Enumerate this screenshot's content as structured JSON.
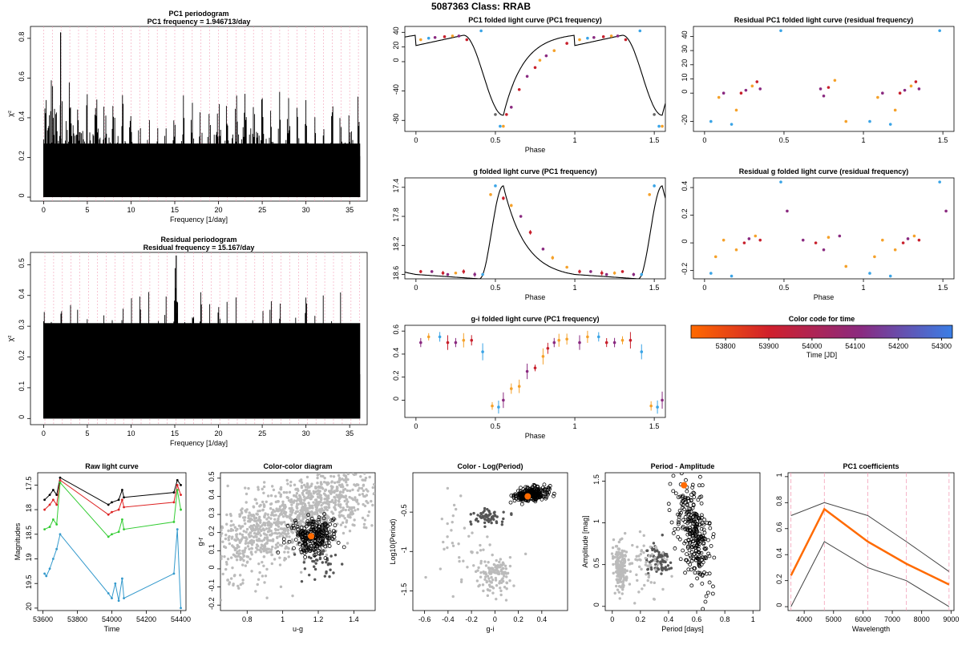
{
  "page": {
    "main_title": "5087363    Class: RRAB"
  },
  "chart_data": [
    {
      "id": "p1",
      "type": "line",
      "title": "PC1 periodogram",
      "subtitle": "PC1 frequency = 1.946713/day",
      "xlabel": "Frequency [1/day]",
      "ylabel": "χ²",
      "xlim": [
        -1.5,
        37
      ],
      "ylim": [
        -0.02,
        0.86
      ],
      "xticks": [
        0,
        5,
        10,
        15,
        20,
        25,
        30,
        35
      ],
      "yticks": [
        0.0,
        0.2,
        0.4,
        0.6,
        0.8
      ],
      "peak_frequency": 1.946713,
      "peak_value": 0.83
    },
    {
      "id": "p2",
      "type": "line",
      "title": "Residual periodogram",
      "subtitle": "Residual frequency = 15.167/day",
      "xlabel": "Frequency [1/day]",
      "ylabel": "χ²",
      "xlim": [
        -1.5,
        37
      ],
      "ylim": [
        -0.02,
        0.54
      ],
      "xticks": [
        0,
        5,
        10,
        15,
        20,
        25,
        30,
        35
      ],
      "yticks": [
        0.0,
        0.1,
        0.2,
        0.3,
        0.4,
        0.5
      ],
      "peak_frequency": 15.167,
      "peak_value": 0.53
    },
    {
      "id": "lc1",
      "type": "scatter",
      "title": "PC1 folded light curve (PC1 frequency)",
      "xlabel": "Phase",
      "ylabel": "",
      "xlim": [
        -0.07,
        1.57
      ],
      "ylim": [
        -95,
        48
      ],
      "xticks": [
        0.0,
        0.5,
        1.0,
        1.5
      ],
      "yticks": [
        40,
        20,
        0,
        -40,
        -80
      ],
      "points": [
        [
          0.03,
          30,
          "o"
        ],
        [
          0.08,
          32,
          "b"
        ],
        [
          0.12,
          33,
          "m"
        ],
        [
          0.18,
          34,
          "r"
        ],
        [
          0.23,
          35,
          "o"
        ],
        [
          0.27,
          35,
          "m"
        ],
        [
          0.32,
          30,
          "r"
        ],
        [
          0.41,
          42,
          "b"
        ],
        [
          0.5,
          -72,
          "g"
        ],
        [
          0.53,
          -88,
          "b"
        ],
        [
          0.55,
          -88,
          "o"
        ],
        [
          0.57,
          -72,
          "r"
        ],
        [
          0.6,
          -62,
          "m"
        ],
        [
          0.65,
          -38,
          "r"
        ],
        [
          0.7,
          -20,
          "m"
        ],
        [
          0.75,
          -8,
          "r"
        ],
        [
          0.78,
          2,
          "o"
        ],
        [
          0.82,
          8,
          "m"
        ],
        [
          0.87,
          15,
          "o"
        ],
        [
          0.95,
          25,
          "r"
        ],
        [
          1.03,
          30,
          "o"
        ],
        [
          1.08,
          32,
          "b"
        ],
        [
          1.12,
          33,
          "m"
        ],
        [
          1.18,
          34,
          "r"
        ],
        [
          1.23,
          35,
          "o"
        ],
        [
          1.27,
          35,
          "m"
        ],
        [
          1.32,
          30,
          "r"
        ],
        [
          1.41,
          42,
          "b"
        ],
        [
          1.5,
          -72,
          "g"
        ],
        [
          1.53,
          -88,
          "b"
        ],
        [
          1.55,
          -88,
          "o"
        ]
      ]
    },
    {
      "id": "lc2",
      "type": "scatter",
      "title": "g folded light curve (PC1 frequency)",
      "xlabel": "Phase",
      "ylabel": "",
      "xlim": [
        -0.07,
        1.57
      ],
      "ylim": [
        18.66,
        17.27
      ],
      "xticks": [
        0.0,
        0.5,
        1.0,
        1.5
      ],
      "yticks": [
        17.4,
        17.8,
        18.2,
        18.6
      ],
      "points": [
        [
          0.03,
          18.56,
          "r"
        ],
        [
          0.1,
          18.56,
          "m"
        ],
        [
          0.17,
          18.58,
          "r"
        ],
        [
          0.2,
          18.6,
          "m"
        ],
        [
          0.25,
          18.58,
          "o"
        ],
        [
          0.3,
          18.56,
          "r"
        ],
        [
          0.37,
          18.6,
          "m"
        ],
        [
          0.42,
          18.6,
          "b"
        ],
        [
          0.47,
          17.5,
          "o"
        ],
        [
          0.5,
          17.38,
          "b"
        ],
        [
          0.55,
          17.55,
          "r"
        ],
        [
          0.6,
          17.65,
          "o"
        ],
        [
          0.66,
          17.8,
          "m"
        ],
        [
          0.72,
          18.02,
          "r"
        ],
        [
          0.8,
          18.25,
          "m"
        ],
        [
          0.86,
          18.37,
          "o"
        ],
        [
          0.95,
          18.5,
          "o"
        ],
        [
          1.03,
          18.56,
          "r"
        ],
        [
          1.1,
          18.56,
          "m"
        ],
        [
          1.17,
          18.58,
          "r"
        ],
        [
          1.2,
          18.6,
          "m"
        ],
        [
          1.25,
          18.58,
          "o"
        ],
        [
          1.3,
          18.56,
          "r"
        ],
        [
          1.37,
          18.6,
          "m"
        ],
        [
          1.42,
          18.6,
          "b"
        ],
        [
          1.47,
          17.5,
          "o"
        ],
        [
          1.5,
          17.38,
          "b"
        ]
      ]
    },
    {
      "id": "lc3",
      "type": "scatter",
      "title": "g-i folded light curve (PC1 frequency)",
      "xlabel": "Phase",
      "ylabel": "",
      "xlim": [
        -0.07,
        1.57
      ],
      "ylim": [
        -0.15,
        0.65
      ],
      "xticks": [
        0.0,
        0.5,
        1.0,
        1.5
      ],
      "yticks": [
        0.0,
        0.2,
        0.4,
        0.6
      ],
      "points": [
        [
          0.03,
          0.5,
          "m"
        ],
        [
          0.08,
          0.55,
          "o"
        ],
        [
          0.15,
          0.55,
          "b"
        ],
        [
          0.2,
          0.5,
          "r"
        ],
        [
          0.25,
          0.5,
          "m"
        ],
        [
          0.3,
          0.52,
          "o"
        ],
        [
          0.35,
          0.52,
          "r"
        ],
        [
          0.42,
          0.42,
          "b"
        ],
        [
          0.48,
          -0.05,
          "o"
        ],
        [
          0.52,
          -0.06,
          "b"
        ],
        [
          0.55,
          0.0,
          "m"
        ],
        [
          0.6,
          0.1,
          "o"
        ],
        [
          0.65,
          0.12,
          "o"
        ],
        [
          0.7,
          0.25,
          "m"
        ],
        [
          0.75,
          0.28,
          "r"
        ],
        [
          0.8,
          0.38,
          "o"
        ],
        [
          0.83,
          0.45,
          "r"
        ],
        [
          0.87,
          0.5,
          "m"
        ],
        [
          0.9,
          0.52,
          "o"
        ],
        [
          0.95,
          0.53,
          "o"
        ],
        [
          1.03,
          0.5,
          "m"
        ],
        [
          1.08,
          0.55,
          "o"
        ],
        [
          1.15,
          0.55,
          "b"
        ],
        [
          1.2,
          0.5,
          "r"
        ],
        [
          1.25,
          0.5,
          "m"
        ],
        [
          1.3,
          0.52,
          "o"
        ],
        [
          1.35,
          0.52,
          "r"
        ],
        [
          1.42,
          0.42,
          "b"
        ],
        [
          1.48,
          -0.05,
          "o"
        ],
        [
          1.52,
          -0.06,
          "b"
        ],
        [
          1.55,
          0.0,
          "m"
        ]
      ]
    },
    {
      "id": "r1",
      "type": "scatter",
      "title": "Residual PC1 folded light curve (residual frequency)",
      "xlabel": "",
      "ylabel": "",
      "xlim": [
        -0.07,
        1.57
      ],
      "ylim": [
        -27,
        47
      ],
      "xticks": [
        0.0,
        0.5,
        1.0,
        1.5
      ],
      "yticks": [
        40,
        30,
        20,
        10,
        0,
        -20
      ],
      "points": [
        [
          0.04,
          -20,
          "b"
        ],
        [
          0.09,
          -3,
          "o"
        ],
        [
          0.12,
          0,
          "m"
        ],
        [
          0.17,
          -22,
          "b"
        ],
        [
          0.2,
          -12,
          "o"
        ],
        [
          0.23,
          0,
          "r"
        ],
        [
          0.26,
          2,
          "m"
        ],
        [
          0.3,
          5,
          "o"
        ],
        [
          0.33,
          8,
          "r"
        ],
        [
          0.35,
          3,
          "m"
        ],
        [
          0.48,
          44,
          "b"
        ],
        [
          0.73,
          3,
          "m"
        ],
        [
          0.75,
          -2,
          "m"
        ],
        [
          0.78,
          4,
          "r"
        ],
        [
          0.82,
          9,
          "o"
        ],
        [
          0.89,
          -20,
          "o"
        ],
        [
          1.04,
          -20,
          "b"
        ],
        [
          1.09,
          -3,
          "o"
        ],
        [
          1.12,
          0,
          "m"
        ],
        [
          1.17,
          -22,
          "b"
        ],
        [
          1.2,
          -12,
          "o"
        ],
        [
          1.23,
          0,
          "r"
        ],
        [
          1.26,
          2,
          "m"
        ],
        [
          1.3,
          5,
          "o"
        ],
        [
          1.33,
          8,
          "r"
        ],
        [
          1.35,
          3,
          "m"
        ],
        [
          1.48,
          44,
          "b"
        ]
      ]
    },
    {
      "id": "r2",
      "type": "scatter",
      "title": "Residual g folded light curve (residual frequency)",
      "xlabel": "Phase",
      "ylabel": "",
      "xlim": [
        -0.07,
        1.57
      ],
      "ylim": [
        -0.26,
        0.47
      ],
      "xticks": [
        0.0,
        0.5,
        1.0,
        1.5
      ],
      "yticks": [
        0.4,
        0.2,
        0.0,
        -0.2
      ],
      "points": [
        [
          0.04,
          -0.22,
          "b"
        ],
        [
          0.07,
          -0.1,
          "o"
        ],
        [
          0.12,
          0.02,
          "o"
        ],
        [
          0.17,
          -0.24,
          "b"
        ],
        [
          0.2,
          -0.05,
          "o"
        ],
        [
          0.25,
          0.0,
          "r"
        ],
        [
          0.28,
          0.03,
          "m"
        ],
        [
          0.32,
          0.05,
          "o"
        ],
        [
          0.35,
          0.02,
          "r"
        ],
        [
          0.48,
          0.44,
          "b"
        ],
        [
          0.52,
          0.23,
          "m"
        ],
        [
          0.62,
          0.02,
          "m"
        ],
        [
          0.7,
          0.0,
          "r"
        ],
        [
          0.75,
          -0.05,
          "m"
        ],
        [
          0.78,
          0.04,
          "o"
        ],
        [
          0.85,
          0.05,
          "m"
        ],
        [
          0.89,
          -0.17,
          "o"
        ],
        [
          1.04,
          -0.22,
          "b"
        ],
        [
          1.07,
          -0.1,
          "o"
        ],
        [
          1.12,
          0.02,
          "o"
        ],
        [
          1.17,
          -0.24,
          "b"
        ],
        [
          1.2,
          -0.05,
          "o"
        ],
        [
          1.25,
          0.0,
          "r"
        ],
        [
          1.28,
          0.03,
          "m"
        ],
        [
          1.32,
          0.05,
          "o"
        ],
        [
          1.35,
          0.02,
          "r"
        ],
        [
          1.48,
          0.44,
          "b"
        ],
        [
          1.52,
          0.23,
          "m"
        ]
      ]
    },
    {
      "id": "raw",
      "type": "line",
      "title": "Raw light curve",
      "xlabel": "Time",
      "ylabel": "Magnitudes",
      "xlim": [
        53570,
        54430
      ],
      "ylim": [
        20.05,
        17.25
      ],
      "xticks": [
        53600,
        53800,
        54000,
        54200,
        54400
      ],
      "yticks": [
        17.5,
        18,
        18.5,
        19,
        19.5,
        20
      ],
      "series": [
        {
          "name": "black",
          "x": [
            53610,
            53640,
            53660,
            53680,
            53700,
            53980,
            54000,
            54040,
            54060,
            54070,
            54360,
            54380,
            54400
          ],
          "y": [
            17.8,
            17.7,
            17.6,
            17.7,
            17.35,
            17.9,
            17.85,
            17.8,
            17.6,
            17.75,
            17.65,
            17.4,
            17.5
          ]
        },
        {
          "name": "red",
          "x": [
            53610,
            53640,
            53660,
            53680,
            53700,
            53980,
            54000,
            54040,
            54060,
            54070,
            54360,
            54380,
            54400
          ],
          "y": [
            18.0,
            17.9,
            17.8,
            17.9,
            17.4,
            18.1,
            18.05,
            18.0,
            17.8,
            17.95,
            17.85,
            17.5,
            17.7
          ]
        },
        {
          "name": "green",
          "x": [
            53610,
            53640,
            53660,
            53680,
            53700,
            53980,
            54000,
            54040,
            54060,
            54070,
            54360,
            54380,
            54400
          ],
          "y": [
            18.4,
            18.35,
            18.2,
            18.3,
            17.45,
            18.55,
            18.5,
            18.45,
            18.2,
            18.4,
            18.25,
            17.6,
            18.0
          ]
        },
        {
          "name": "blue",
          "x": [
            53610,
            53620,
            53640,
            53660,
            53680,
            53700,
            53980,
            54000,
            54020,
            54040,
            54060,
            54070,
            54360,
            54380,
            54400
          ],
          "y": [
            19.3,
            19.35,
            19.2,
            19.0,
            18.8,
            18.5,
            19.7,
            19.8,
            19.5,
            19.85,
            19.4,
            19.8,
            19.3,
            18.4,
            20.0
          ]
        }
      ]
    },
    {
      "id": "cc",
      "type": "scatter",
      "title": "Color-color diagram",
      "xlabel": "u-g",
      "ylabel": "g-r",
      "xlim": [
        0.65,
        1.52
      ],
      "ylim": [
        -0.23,
        0.53
      ],
      "xticks": [
        0.8,
        1.0,
        1.2,
        1.4
      ],
      "yticks": [
        -0.2,
        -0.1,
        0.0,
        0.1,
        0.2,
        0.3,
        0.4,
        0.5
      ],
      "highlight": [
        1.16,
        0.18
      ]
    },
    {
      "id": "clp",
      "type": "scatter",
      "title": "Color - Log(Period)",
      "xlabel": "g-i",
      "ylabel": "Log10(Period)",
      "xlim": [
        -0.7,
        0.62
      ],
      "ylim": [
        -1.75,
        0.0
      ],
      "xticks": [
        -0.6,
        -0.4,
        -0.2,
        0.0,
        0.2,
        0.4
      ],
      "yticks": [
        -0.5,
        -1.0,
        -1.5
      ],
      "highlight": [
        0.28,
        -0.3
      ]
    },
    {
      "id": "pa",
      "type": "scatter",
      "title": "Period - Amplitude",
      "xlabel": "Period [days]",
      "ylabel": "Amplitude [mag]",
      "xlim": [
        -0.05,
        1.05
      ],
      "ylim": [
        -0.05,
        1.6
      ],
      "xticks": [
        0.0,
        0.2,
        0.4,
        0.6,
        0.8,
        1.0
      ],
      "yticks": [
        0.0,
        0.5,
        1.0,
        1.5
      ],
      "highlight": [
        0.51,
        1.45
      ]
    },
    {
      "id": "coef",
      "type": "line",
      "title": "PC1 coefficients",
      "xlabel": "Wavelength",
      "ylabel": "",
      "xlim": [
        3450,
        9100
      ],
      "ylim": [
        -0.03,
        1.03
      ],
      "xticks": [
        4000,
        5000,
        6000,
        7000,
        8000,
        9000
      ],
      "yticks": [
        0.0,
        0.2,
        0.4,
        0.6,
        0.8,
        1.0
      ],
      "vlines": [
        3550,
        4686,
        6166,
        7480,
        8932
      ],
      "series": [
        {
          "name": "upper",
          "x": [
            3551,
            4686,
            6166,
            7480,
            8932
          ],
          "y": [
            0.7,
            0.8,
            0.7,
            0.5,
            0.27
          ]
        },
        {
          "name": "coef",
          "x": [
            3551,
            4686,
            6166,
            7480,
            8932
          ],
          "y": [
            0.24,
            0.75,
            0.5,
            0.33,
            0.17
          ]
        },
        {
          "name": "lower",
          "x": [
            3551,
            4686,
            6166,
            7480,
            8932
          ],
          "y": [
            0.0,
            0.5,
            0.3,
            0.2,
            0.0
          ]
        }
      ]
    },
    {
      "id": "cbar",
      "type": "heatmap",
      "title": "Color code for time",
      "xlabel": "Time [JD]",
      "xlim": [
        53720,
        54325
      ],
      "xticks": [
        53800,
        53900,
        54000,
        54100,
        54200,
        54300
      ]
    }
  ]
}
